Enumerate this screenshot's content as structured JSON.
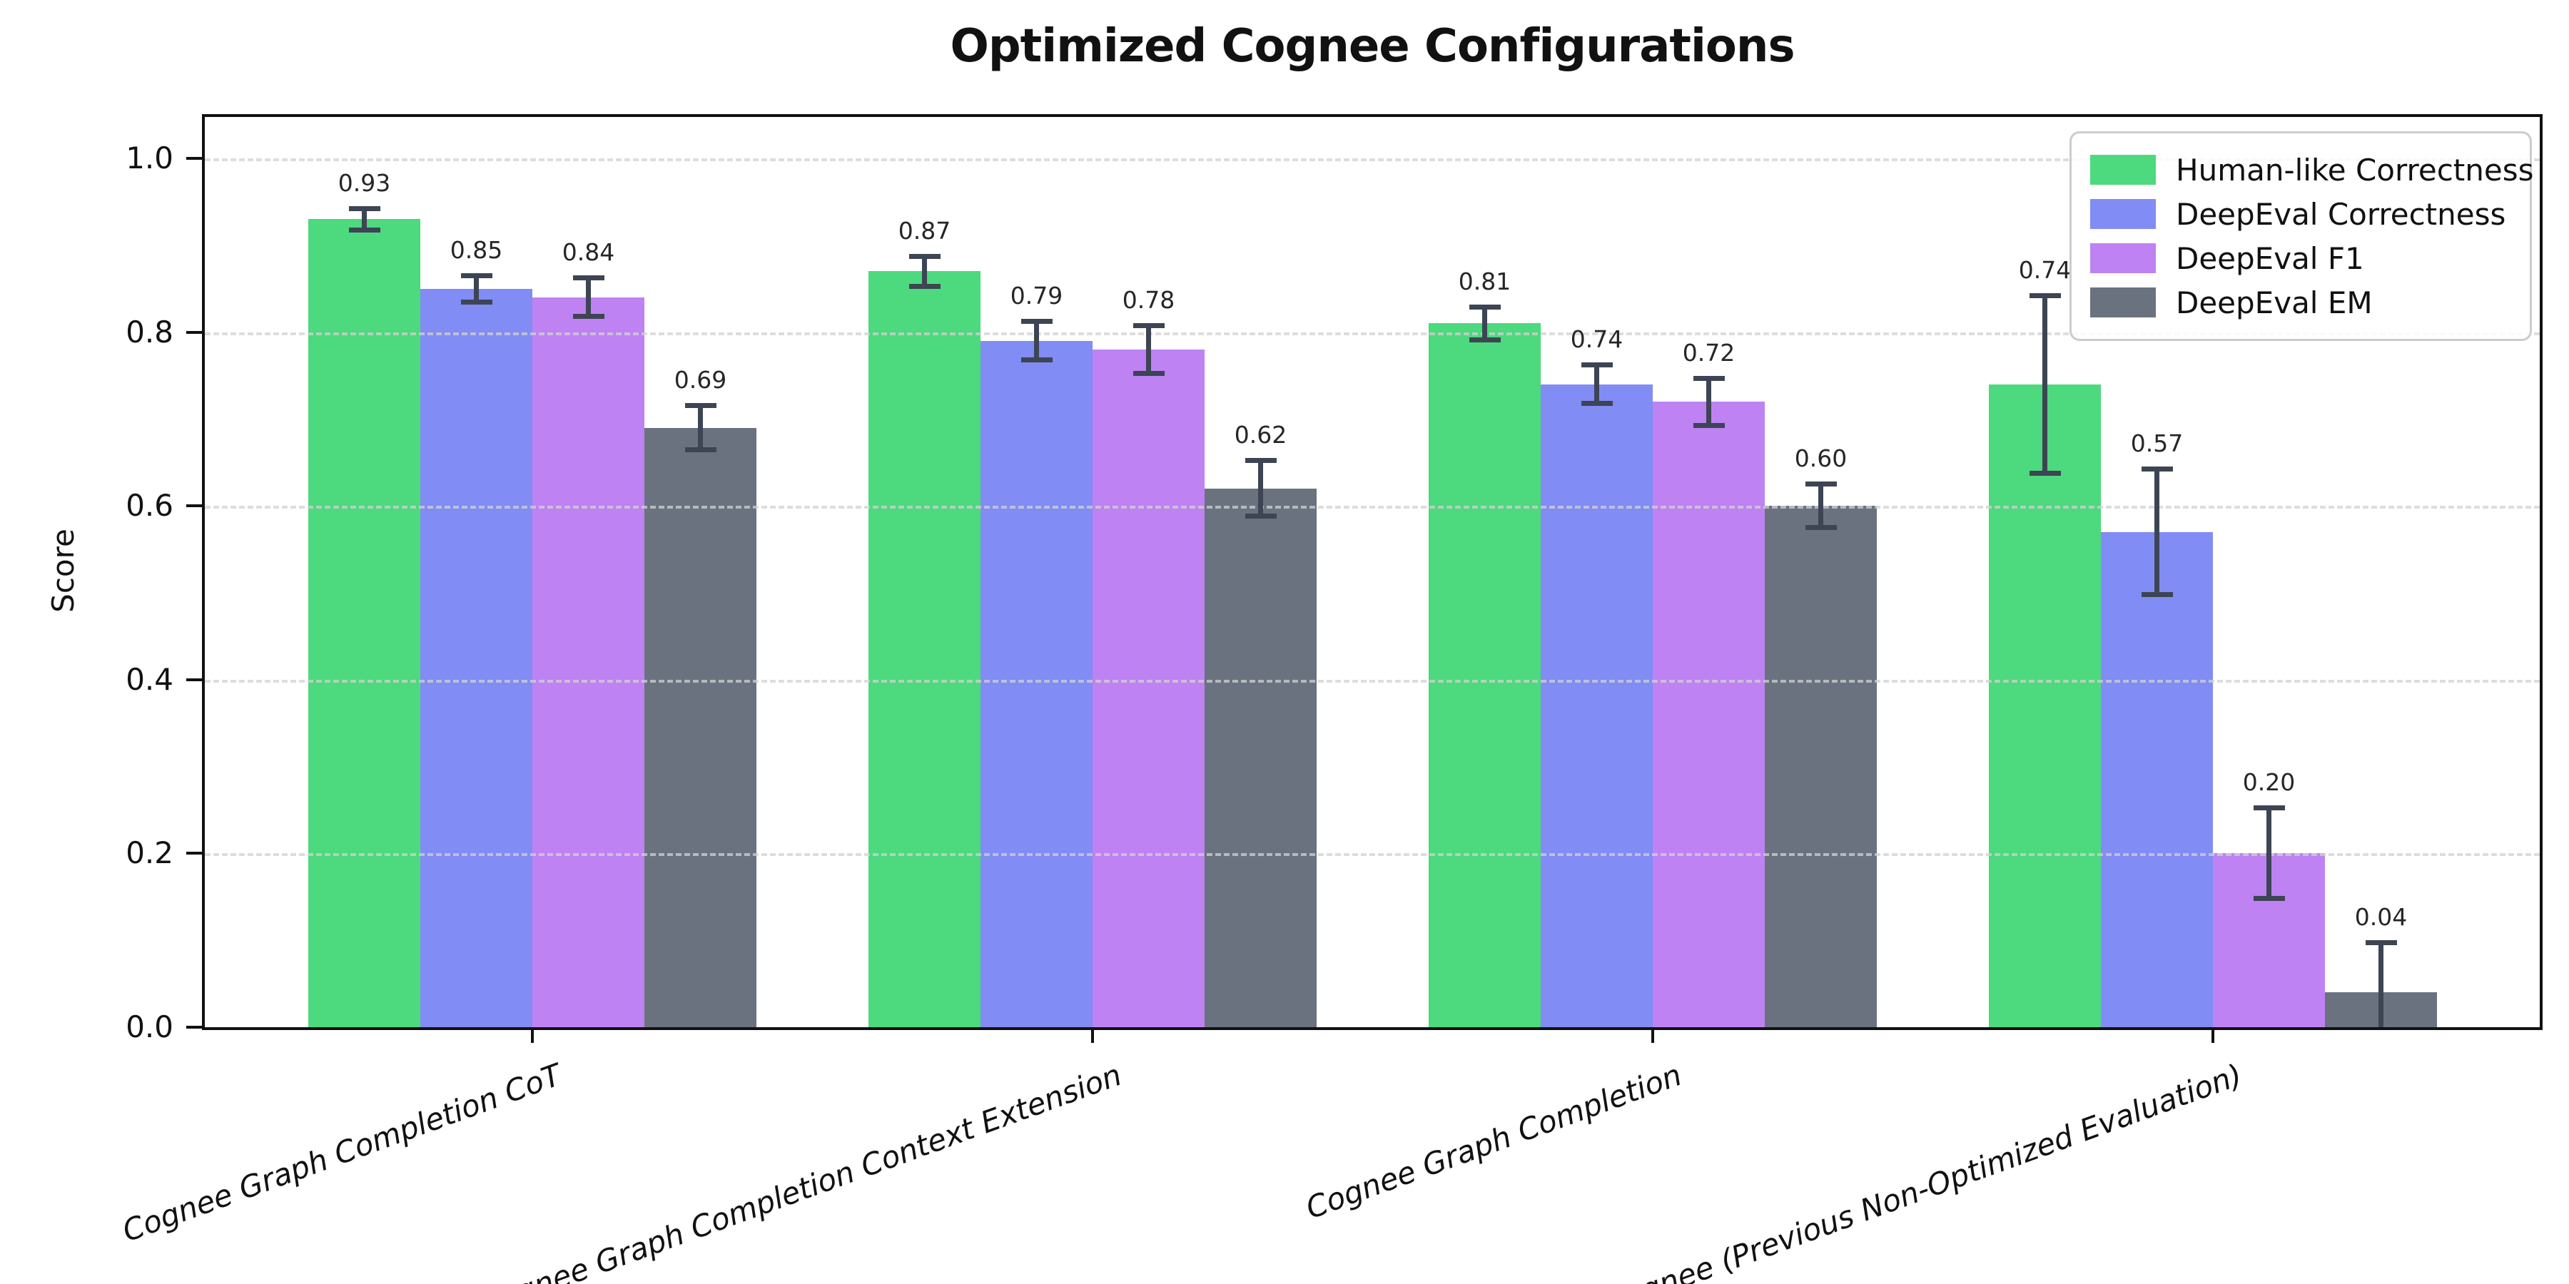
{
  "figure": {
    "title": "Optimized Cognee Configurations",
    "ylabel": "Score"
  },
  "chart_data": {
    "type": "bar",
    "title": "Optimized Cognee Configurations",
    "xlabel": "",
    "ylabel": "Score",
    "ylim": [
      0,
      1.05
    ],
    "yticks": [
      0.0,
      0.2,
      0.4,
      0.6,
      0.8,
      1.0
    ],
    "grid": "horizontal-dashed",
    "legend_position": "upper-right",
    "categories": [
      "Cognee Graph Completion CoT",
      "Cognee Graph Completion Context Extension",
      "Cognee Graph Completion",
      "Cognee (Previous Non-Optimized Evaluation)"
    ],
    "series": [
      {
        "name": "Human-like Correctness",
        "color": "#4dd97d",
        "values": [
          0.93,
          0.87,
          0.81,
          0.74
        ],
        "errors": [
          0.015,
          0.02,
          0.022,
          0.105
        ]
      },
      {
        "name": "DeepEval Correctness",
        "color": "#818cf4",
        "values": [
          0.85,
          0.79,
          0.74,
          0.57
        ],
        "errors": [
          0.018,
          0.025,
          0.025,
          0.075
        ]
      },
      {
        "name": "DeepEval F1",
        "color": "#be82f2",
        "values": [
          0.84,
          0.78,
          0.72,
          0.2
        ],
        "errors": [
          0.025,
          0.03,
          0.03,
          0.055
        ]
      },
      {
        "name": "DeepEval EM",
        "color": "#6a7280",
        "values": [
          0.69,
          0.62,
          0.6,
          0.04
        ],
        "errors": [
          0.028,
          0.035,
          0.028,
          0.06
        ]
      }
    ],
    "value_label_decimals": 2,
    "style": {
      "errorbar_color": "#3d4554",
      "grid_color": "#d9d9d9",
      "spine_color": "#111111",
      "background": "#ffffff"
    }
  }
}
